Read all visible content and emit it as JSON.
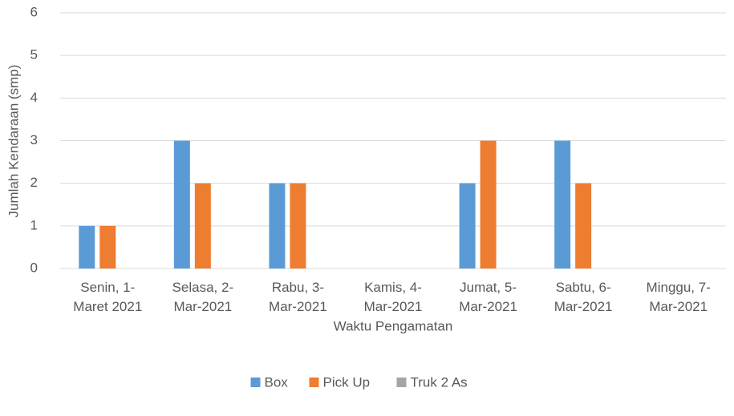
{
  "chart_data": {
    "type": "bar",
    "x_label": "Waktu Pengamatan",
    "y_label": "Jumlah Kendaraan (smp)",
    "categories": [
      "Senin, 1-Maret 2021",
      "Selasa, 2-Mar-2021",
      "Rabu, 3-Mar-2021",
      "Kamis, 4-Mar-2021",
      "Jumat, 5-Mar-2021",
      "Sabtu, 6-Mar-2021",
      "Minggu, 7-Mar-2021"
    ],
    "series": [
      {
        "name": "Box",
        "color": "#5b9bd5",
        "values": [
          1,
          3,
          2,
          0,
          2,
          3,
          0
        ]
      },
      {
        "name": "Pick Up",
        "color": "#ed7d31",
        "values": [
          1,
          2,
          2,
          0,
          3,
          2,
          0
        ]
      },
      {
        "name": "Truk 2 As",
        "color": "#a5a5a5",
        "values": [
          0,
          0,
          0,
          0,
          0,
          0,
          0
        ]
      }
    ],
    "ylim": [
      0,
      6
    ],
    "yticks": [
      0,
      1,
      2,
      3,
      4,
      5,
      6
    ],
    "grid": true,
    "legend": "bottom"
  }
}
